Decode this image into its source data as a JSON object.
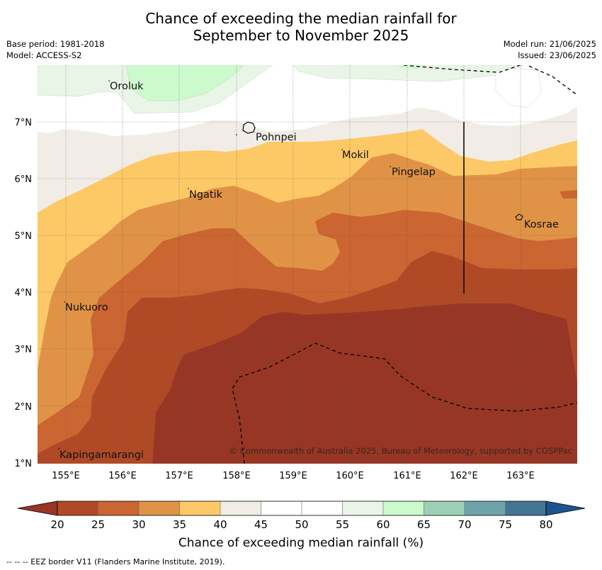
{
  "title_line1": "Chance of exceeding the median rainfall for",
  "title_line2": "September to November 2025",
  "base_period": "Base period: 1981-2018",
  "model": "Model: ACCESS-S2",
  "model_run": "Model run: 21/06/2025",
  "issued": "Issued: 23/06/2025",
  "lon_ticks": [
    "155°E",
    "156°E",
    "157°E",
    "158°E",
    "159°E",
    "160°E",
    "161°E",
    "162°E",
    "163°E"
  ],
  "lat_ticks": [
    "1°N",
    "2°N",
    "3°N",
    "4°N",
    "5°N",
    "6°N",
    "7°N"
  ],
  "places": [
    {
      "name": "Oroluk"
    },
    {
      "name": "Pohnpei"
    },
    {
      "name": "Mokil"
    },
    {
      "name": "Pingelap"
    },
    {
      "name": "Ngatik"
    },
    {
      "name": "Kosrae"
    },
    {
      "name": "Nukuoro"
    },
    {
      "name": "Kapingamarangi"
    }
  ],
  "copyright": "© Commonwealth of Australia 2025, Bureau of Meteorology, supported by COSPPac",
  "colorbar": {
    "label": "Chance of exceeding median rainfall (%)",
    "ticks": [
      "20",
      "25",
      "30",
      "35",
      "40",
      "45",
      "50",
      "55",
      "60",
      "65",
      "70",
      "75",
      "80"
    ],
    "colors": [
      "#b04a26",
      "#cb6532",
      "#e09346",
      "#fdc966",
      "#f1ede6",
      "#ffffff",
      "#ffffff",
      "#e9f5e6",
      "#ccfacc",
      "#9ed0b7",
      "#6ea4a9",
      "#447694",
      "#1a5590"
    ],
    "under_color": "#973625"
  },
  "footnote": "-- -- -- EEZ border V11 (Flanders Marine Institute, 2019)."
}
